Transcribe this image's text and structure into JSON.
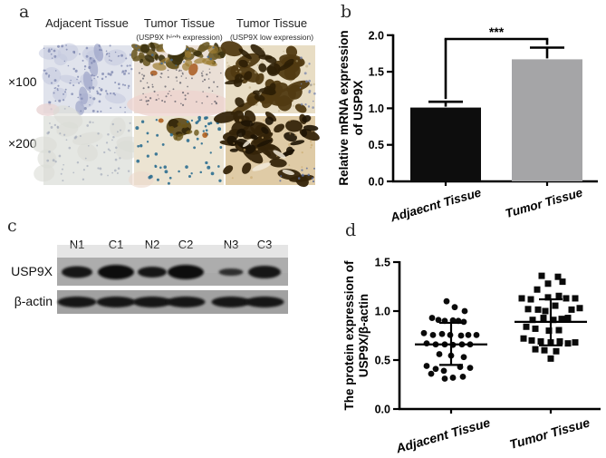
{
  "panels": {
    "a": "a",
    "b": "b",
    "c": "c",
    "d": "d"
  },
  "panel_a": {
    "col_headers": [
      {
        "title": "Adjacent Tissue",
        "subtitle": ""
      },
      {
        "title": "Tumor Tissue",
        "subtitle": "(USP9X high expression)"
      },
      {
        "title": "Tumor Tissue",
        "subtitle": "(USP9X low expression)"
      }
    ],
    "row_labels": [
      "×100",
      "×200"
    ],
    "tiles": [
      {
        "name": "adjacent-x100",
        "bg": "#e0e3ec",
        "seed": 11,
        "features": [
          {
            "t": "blobs",
            "color": "#c3c8de",
            "n": 12,
            "region": [
              0.05,
              0.05,
              0.95,
              0.95
            ],
            "w": [
              5,
              14
            ],
            "h": [
              4,
              10
            ],
            "o": 0.55
          },
          {
            "t": "fixed",
            "color": "#9aa2c6",
            "o": 0.65,
            "shapes": [
              [
                62,
                8,
                5,
                10,
                -12
              ],
              [
                56,
                24,
                5,
                11,
                -12
              ],
              [
                50,
                40,
                5,
                11,
                -10
              ],
              [
                45,
                56,
                5,
                10,
                -8
              ],
              [
                41,
                70,
                5,
                8,
                -8
              ]
            ]
          },
          {
            "t": "dots",
            "color": "#7b84ae",
            "n": 140,
            "r": [
              0.7,
              1.6
            ],
            "region": [
              0,
              0,
              1,
              1
            ],
            "o": 0.75
          },
          {
            "t": "fixed",
            "color": "#e9d5d4",
            "o": 0.8,
            "shapes": [
              [
                5,
                72,
                13,
                7,
                0
              ]
            ]
          }
        ]
      },
      {
        "name": "tumor-high-x100",
        "bg": "#eadfd6",
        "seed": 22,
        "features": [
          {
            "t": "fixed",
            "color": "#eed3cd",
            "o": 0.75,
            "shapes": [
              [
                50,
                66,
                58,
                16,
                0
              ]
            ]
          },
          {
            "t": "blobs",
            "color": "#6b5a26",
            "n": 24,
            "region": [
              0,
              0,
              1,
              0.3
            ],
            "w": [
              3,
              11
            ],
            "h": [
              2,
              7
            ],
            "o": 0.9
          },
          {
            "t": "blobs",
            "color": "#3c320f",
            "n": 16,
            "region": [
              0,
              0,
              1,
              0.26
            ],
            "w": [
              2,
              8
            ],
            "h": [
              2,
              6
            ],
            "o": 0.9
          },
          {
            "t": "blobs",
            "color": "#9c7c30",
            "n": 10,
            "region": [
              0.02,
              0.04,
              0.98,
              0.34
            ],
            "w": [
              3,
              8
            ],
            "h": [
              2,
              5
            ],
            "o": 0.7
          },
          {
            "t": "fixed",
            "color": "#ffffff",
            "o": 1,
            "shapes": [
              [
                45,
                1,
                13,
                10,
                0
              ]
            ]
          },
          {
            "t": "fixed",
            "color": "#a85a1e",
            "o": 0.85,
            "shapes": [
              [
                66,
                27,
                5,
                7,
                20
              ],
              [
                22,
                31,
                4,
                3,
                0
              ]
            ]
          },
          {
            "t": "dots",
            "color": "#53525e",
            "n": 80,
            "r": [
              0.6,
              1.2
            ],
            "region": [
              0.02,
              0.34,
              0.98,
              0.88
            ],
            "o": 0.7
          },
          {
            "t": "dots",
            "color": "#46688e",
            "n": 12,
            "r": [
              0.8,
              1.4
            ],
            "region": [
              0,
              0,
              1,
              0.3
            ],
            "o": 0.8
          }
        ]
      },
      {
        "name": "tumor-low-x100",
        "bg": "#e8ddc4",
        "seed": 33,
        "features": [
          {
            "t": "blobs",
            "color": "#513a12",
            "n": 28,
            "region": [
              0.03,
              0.03,
              0.88,
              0.97
            ],
            "w": [
              4,
              15
            ],
            "h": [
              3,
              9
            ],
            "o": 0.95
          },
          {
            "t": "blobs",
            "color": "#2d1f06",
            "n": 20,
            "region": [
              0.08,
              0.05,
              0.82,
              0.92
            ],
            "w": [
              3,
              10
            ],
            "h": [
              2,
              7
            ],
            "o": 0.9
          },
          {
            "t": "dots",
            "color": "#7a86ae",
            "n": 16,
            "r": [
              0.8,
              1.5
            ],
            "region": [
              0.82,
              0.15,
              1,
              0.95
            ],
            "o": 0.75
          },
          {
            "t": "dots",
            "color": "#b9a87e",
            "n": 25,
            "r": [
              0.8,
              1.6
            ],
            "region": [
              0,
              0,
              1,
              1
            ],
            "o": 0.5
          }
        ]
      },
      {
        "name": "adjacent-x200",
        "bg": "#e5e7e3",
        "seed": 44,
        "features": [
          {
            "t": "blobs",
            "color": "#dadcd6",
            "n": 10,
            "region": [
              0,
              0,
              1,
              1
            ],
            "w": [
              8,
              18
            ],
            "h": [
              6,
              12
            ],
            "o": 0.6
          },
          {
            "t": "dots",
            "color": "#9aa2b4",
            "n": 60,
            "r": [
              0.8,
              1.5
            ],
            "region": [
              0.02,
              0.02,
              0.98,
              0.98
            ],
            "o": 0.6
          }
        ]
      },
      {
        "name": "tumor-high-x200",
        "bg": "#ece4d2",
        "seed": 55,
        "features": [
          {
            "t": "fixed",
            "color": "#ecd8cc",
            "o": 0.6,
            "shapes": [
              [
                8,
                70,
                14,
                9,
                0
              ]
            ]
          },
          {
            "t": "fixed",
            "color": "#5a4616",
            "o": 0.9,
            "shapes": [
              [
                50,
                12,
                14,
                10,
                0
              ]
            ]
          },
          {
            "t": "fixed",
            "color": "#33270a",
            "o": 0.9,
            "shapes": [
              [
                44,
                8,
                6,
                5,
                0
              ],
              [
                58,
                16,
                5,
                4,
                0
              ],
              [
                50,
                20,
                4,
                3,
                0
              ]
            ]
          },
          {
            "t": "blobs",
            "color": "#6a5518",
            "n": 8,
            "region": [
              0.33,
              0.02,
              0.72,
              0.35
            ],
            "w": [
              2,
              6
            ],
            "h": [
              2,
              4
            ],
            "o": 0.8
          },
          {
            "t": "dots",
            "color": "#2e6e90",
            "n": 42,
            "r": [
              1.1,
              2.0
            ],
            "region": [
              0.02,
              0.02,
              0.98,
              0.98
            ],
            "o": 0.9
          },
          {
            "t": "dots",
            "color": "#2e6e90",
            "n": 14,
            "r": [
              1.2,
              2.0
            ],
            "region": [
              0.68,
              0.0,
              1,
              0.28
            ],
            "o": 0.9
          },
          {
            "t": "fixed",
            "color": "#b06020",
            "o": 0.9,
            "shapes": [
              [
                79,
                21,
                3,
                3,
                0
              ],
              [
                30,
                5,
                3,
                2.5,
                0
              ]
            ]
          }
        ]
      },
      {
        "name": "tumor-low-x200",
        "bg": "#dfcba6",
        "seed": 66,
        "features": [
          {
            "t": "blobs",
            "color": "#35240a",
            "n": 32,
            "region": [
              0,
              0,
              1,
              0.96
            ],
            "w": [
              4,
              14
            ],
            "h": [
              3,
              8
            ],
            "o": 0.95
          },
          {
            "t": "blobs",
            "color": "#1e1404",
            "n": 18,
            "region": [
              0.04,
              0.02,
              0.96,
              0.75
            ],
            "w": [
              3,
              10
            ],
            "h": [
              2,
              6
            ],
            "o": 0.9
          },
          {
            "t": "fixed",
            "color": "#f2ead8",
            "o": 0.85,
            "shapes": [
              [
                40,
                56,
                11,
                3,
                -20
              ],
              [
                60,
                42,
                8,
                2.5,
                30
              ],
              [
                24,
                30,
                6,
                2,
                -40
              ],
              [
                70,
                62,
                7,
                2.5,
                15
              ]
            ]
          },
          {
            "t": "dots",
            "color": "#5a6a9a",
            "n": 10,
            "r": [
              0.9,
              1.6
            ],
            "region": [
              0.6,
              0.75,
              1,
              1
            ],
            "o": 0.8
          },
          {
            "t": "dots",
            "color": "#c9a86a",
            "n": 22,
            "r": [
              0.8,
              1.5
            ],
            "region": [
              0,
              0,
              1,
              1
            ],
            "o": 0.6
          }
        ]
      }
    ]
  },
  "panel_c": {
    "lane_labels": [
      "N1",
      "C1",
      "N2",
      "C2",
      "N3",
      "C3"
    ],
    "row_labels": [
      "USP9X",
      "β-actin"
    ],
    "lane_centers": [
      22,
      65,
      105,
      142,
      192,
      229
    ],
    "strip1_color": "#a9a9a9",
    "strip2_color": "#a1a1a1",
    "usp9x_bands": {
      "widths": [
        34,
        40,
        32,
        40,
        27,
        36
      ],
      "heights": [
        13,
        16,
        12,
        16,
        8,
        14
      ],
      "colors": [
        "#161616",
        "#101010",
        "#181818",
        "#0e0e0e",
        "#2e2e2e",
        "#141414"
      ]
    },
    "actin_bands": {
      "width": 43,
      "height": 12,
      "color": "#131313"
    }
  },
  "chart_data": [
    {
      "type": "bar",
      "title": "",
      "ylabel_lines": [
        "Relative mRNA expression",
        "of USP9X"
      ],
      "categories": [
        "Adjaecnt Tissue",
        "Tumor Tissue"
      ],
      "values": [
        1.01,
        1.67
      ],
      "errors": [
        0.08,
        0.16
      ],
      "bar_colors": [
        "#0d0d0d",
        "#a5a5a7"
      ],
      "ylim": [
        0,
        2
      ],
      "yticks": [
        "0.0",
        "0.5",
        "1.0",
        "1.5",
        "2.0"
      ],
      "significance": "***",
      "legend": "none",
      "grid": false
    },
    {
      "type": "scatter",
      "title": "",
      "ylabel_lines": [
        "The protein expression of",
        "USP9X/β-actin"
      ],
      "ylim": [
        0,
        1.5
      ],
      "yticks": [
        "0.0",
        "0.5",
        "1.0",
        "1.5"
      ],
      "marker_color": "#0a0a0a",
      "legend": "none",
      "grid": false,
      "groups": [
        {
          "label": "Adjacent Tissue",
          "marker": "circle",
          "mean": 0.66,
          "sd_top": 0.88,
          "sd_bottom": 0.45,
          "points": [
            [
              -5,
              1.1
            ],
            [
              4,
              1.04
            ],
            [
              15,
              1.0
            ],
            [
              -21,
              0.93
            ],
            [
              -14,
              0.91
            ],
            [
              -7,
              0.9
            ],
            [
              2,
              0.905
            ],
            [
              8,
              0.9
            ],
            [
              14,
              0.89
            ],
            [
              -30,
              0.775
            ],
            [
              -20,
              0.756
            ],
            [
              -10,
              0.766
            ],
            [
              -1,
              0.756
            ],
            [
              11,
              0.75
            ],
            [
              19,
              0.756
            ],
            [
              28,
              0.756
            ],
            [
              -27,
              0.67
            ],
            [
              -17,
              0.66
            ],
            [
              -7,
              0.66
            ],
            [
              2,
              0.655
            ],
            [
              12,
              0.66
            ],
            [
              21,
              0.66
            ],
            [
              -13,
              0.56
            ],
            [
              0,
              0.545
            ],
            [
              14,
              0.53
            ],
            [
              -27,
              0.44
            ],
            [
              -17,
              0.41
            ],
            [
              -8,
              0.39
            ],
            [
              10,
              0.43
            ],
            [
              21,
              0.42
            ],
            [
              -22,
              0.36
            ],
            [
              2,
              0.32
            ],
            [
              13,
              0.33
            ],
            [
              -7,
              0.31
            ]
          ]
        },
        {
          "label": "Tumor Tissue",
          "marker": "square",
          "mean": 0.89,
          "sd_top": 1.12,
          "sd_bottom": 0.65,
          "points": [
            [
              -10,
              1.36
            ],
            [
              8,
              1.35
            ],
            [
              -3,
              1.28
            ],
            [
              13,
              1.3
            ],
            [
              -15,
              1.22
            ],
            [
              -32,
              1.13
            ],
            [
              -22,
              1.12
            ],
            [
              -3,
              1.14
            ],
            [
              9,
              1.155
            ],
            [
              17,
              1.13
            ],
            [
              27,
              1.13
            ],
            [
              -25,
              1.02
            ],
            [
              -14,
              1.015
            ],
            [
              -6,
              1.0
            ],
            [
              5,
              1.055
            ],
            [
              23,
              1.015
            ],
            [
              32,
              1.03
            ],
            [
              -20,
              0.91
            ],
            [
              -8,
              0.93
            ],
            [
              3,
              0.91
            ],
            [
              12,
              0.92
            ],
            [
              19,
              0.93
            ],
            [
              -27,
              0.84
            ],
            [
              -17,
              0.82
            ],
            [
              -2,
              0.8
            ],
            [
              9,
              0.805
            ],
            [
              -30,
              0.72
            ],
            [
              -21,
              0.7
            ],
            [
              -11,
              0.69
            ],
            [
              0,
              0.68
            ],
            [
              10,
              0.69
            ],
            [
              19,
              0.67
            ],
            [
              27,
              0.68
            ],
            [
              -17,
              0.61
            ],
            [
              -7,
              0.6
            ],
            [
              6,
              0.59
            ],
            [
              0,
              0.515
            ]
          ]
        }
      ]
    }
  ]
}
